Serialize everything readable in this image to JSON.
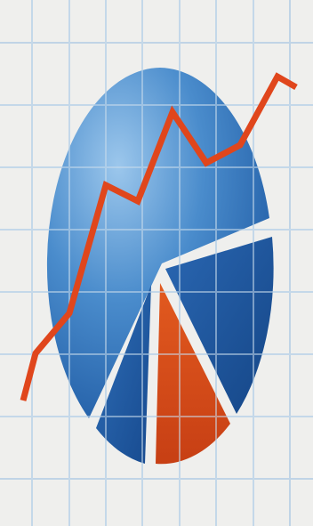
{
  "illustration": {
    "subject": "business-growth-clipart",
    "colors": {
      "paper": "#efefed",
      "grid": "#b9cfe3",
      "pie_light": "#8fbde6",
      "pie_mid": "#3f7fc0",
      "pie_dark": "#1f5da8",
      "pie_deep": "#1b4f94",
      "slice_accent": "#d2481c",
      "trend_line": "#e0461c"
    },
    "elements": [
      "graph-paper-grid",
      "pie-chart",
      "exploded-slices",
      "trend-line"
    ]
  }
}
